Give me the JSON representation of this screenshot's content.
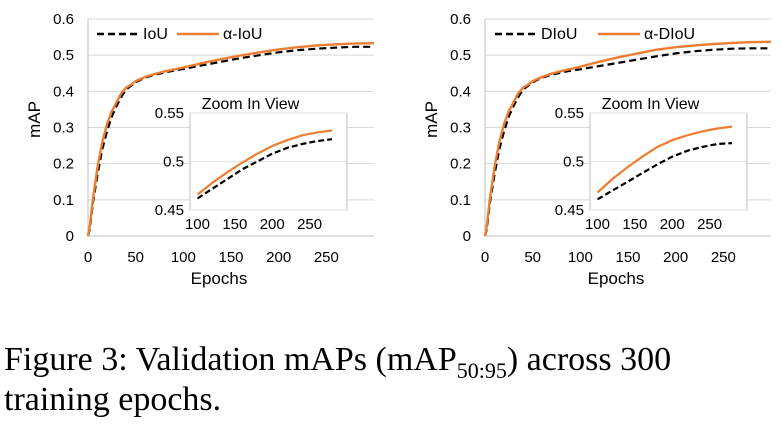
{
  "chart_data": [
    {
      "type": "line",
      "xlabel": "Epochs",
      "ylabel": "mAP",
      "xlim": [
        0,
        300
      ],
      "ylim": [
        0,
        0.6
      ],
      "xticks": [
        "0",
        "50",
        "100",
        "150",
        "200",
        "250"
      ],
      "yticks": [
        "0",
        "0.1",
        "0.2",
        "0.3",
        "0.4",
        "0.5",
        "0.6"
      ],
      "legend": "top-left",
      "series": [
        {
          "name": "IoU",
          "style": "dashed",
          "color": "#000000",
          "x": [
            0,
            2,
            5,
            10,
            15,
            20,
            25,
            30,
            35,
            40,
            45,
            50,
            55,
            60,
            70,
            80,
            90,
            100,
            120,
            140,
            160,
            180,
            200,
            220,
            240,
            260,
            280,
            300
          ],
          "y": [
            0,
            0.02,
            0.09,
            0.17,
            0.24,
            0.29,
            0.33,
            0.36,
            0.385,
            0.405,
            0.415,
            0.425,
            0.432,
            0.438,
            0.446,
            0.452,
            0.457,
            0.462,
            0.472,
            0.482,
            0.492,
            0.5,
            0.508,
            0.514,
            0.518,
            0.521,
            0.523,
            0.523
          ]
        },
        {
          "name": "α-IoU",
          "style": "solid",
          "color": "#ED7D31",
          "x": [
            0,
            2,
            5,
            10,
            15,
            20,
            25,
            30,
            35,
            40,
            45,
            50,
            55,
            60,
            70,
            80,
            90,
            100,
            120,
            140,
            160,
            180,
            200,
            220,
            240,
            260,
            280,
            300
          ],
          "y": [
            0,
            0.03,
            0.1,
            0.19,
            0.26,
            0.31,
            0.345,
            0.37,
            0.395,
            0.41,
            0.418,
            0.428,
            0.434,
            0.44,
            0.448,
            0.455,
            0.46,
            0.466,
            0.478,
            0.489,
            0.499,
            0.508,
            0.516,
            0.522,
            0.527,
            0.53,
            0.532,
            0.533
          ]
        }
      ],
      "inset": {
        "title": "Zoom In View",
        "xlim": [
          90,
          300
        ],
        "ylim": [
          0.45,
          0.55
        ],
        "xticks": [
          "100",
          "150",
          "200",
          "250"
        ],
        "yticks": [
          "0.45",
          "0.5",
          "0.55"
        ]
      }
    },
    {
      "type": "line",
      "xlabel": "Epochs",
      "ylabel": "mAP",
      "xlim": [
        0,
        300
      ],
      "ylim": [
        0,
        0.6
      ],
      "xticks": [
        "0",
        "50",
        "100",
        "150",
        "200",
        "250"
      ],
      "yticks": [
        "0",
        "0.1",
        "0.2",
        "0.3",
        "0.4",
        "0.5",
        "0.6"
      ],
      "legend": "top-left",
      "series": [
        {
          "name": "DIoU",
          "style": "dashed",
          "color": "#000000",
          "x": [
            0,
            2,
            5,
            10,
            15,
            20,
            25,
            30,
            35,
            40,
            45,
            50,
            55,
            60,
            70,
            80,
            90,
            100,
            120,
            140,
            160,
            180,
            200,
            220,
            240,
            260,
            280,
            300
          ],
          "y": [
            0,
            0.02,
            0.09,
            0.17,
            0.24,
            0.29,
            0.33,
            0.36,
            0.385,
            0.405,
            0.415,
            0.425,
            0.432,
            0.438,
            0.446,
            0.452,
            0.457,
            0.461,
            0.47,
            0.479,
            0.488,
            0.497,
            0.505,
            0.511,
            0.515,
            0.518,
            0.519,
            0.519
          ]
        },
        {
          "name": "α-DIoU",
          "style": "solid",
          "color": "#ED7D31",
          "x": [
            0,
            2,
            5,
            10,
            15,
            20,
            25,
            30,
            35,
            40,
            45,
            50,
            55,
            60,
            70,
            80,
            90,
            100,
            120,
            140,
            160,
            180,
            200,
            220,
            240,
            260,
            280,
            300
          ],
          "y": [
            0,
            0.03,
            0.1,
            0.19,
            0.26,
            0.31,
            0.345,
            0.37,
            0.395,
            0.41,
            0.418,
            0.428,
            0.434,
            0.44,
            0.449,
            0.456,
            0.462,
            0.468,
            0.482,
            0.494,
            0.505,
            0.515,
            0.522,
            0.527,
            0.531,
            0.534,
            0.536,
            0.537
          ]
        }
      ],
      "inset": {
        "title": "Zoom In View",
        "xlim": [
          90,
          300
        ],
        "ylim": [
          0.45,
          0.55
        ],
        "xticks": [
          "100",
          "150",
          "200",
          "250"
        ],
        "yticks": [
          "0.45",
          "0.5",
          "0.55"
        ]
      }
    }
  ],
  "caption": {
    "prefix": "Figure 3:  Validation mAPs (mAP",
    "subscript": "50:95",
    "suffix": ") across 300 training epochs."
  }
}
